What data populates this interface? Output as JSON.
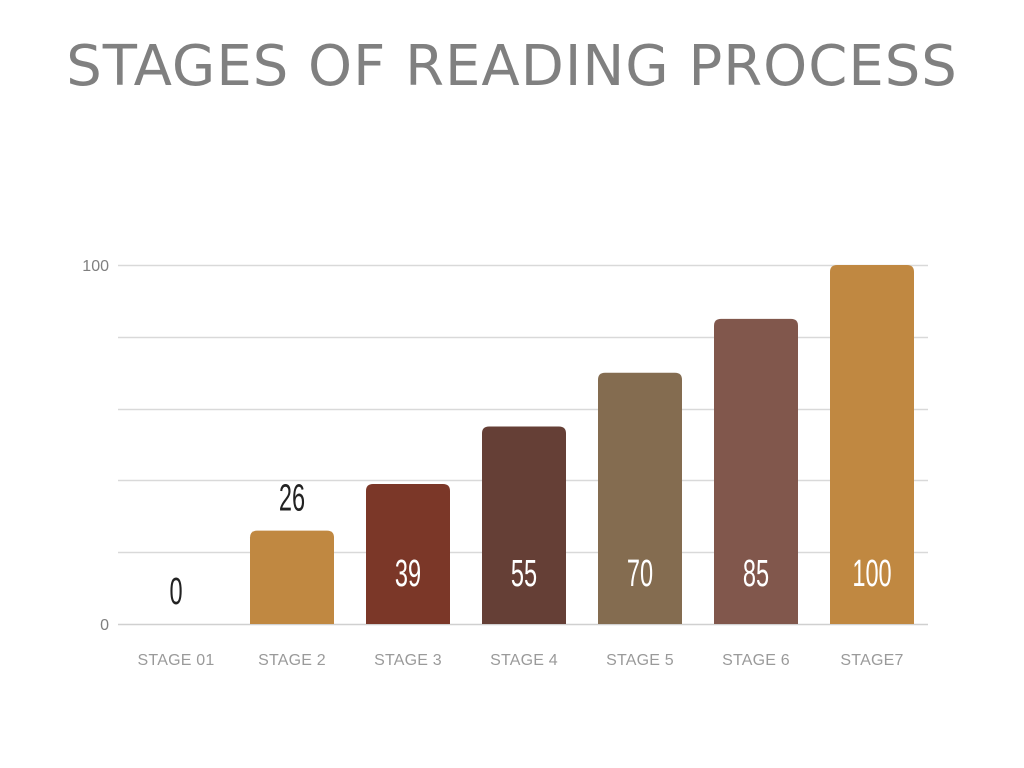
{
  "slide": {
    "title": "STAGES OF READING PROCESS"
  },
  "chart_data": {
    "type": "bar",
    "title": "",
    "xlabel": "",
    "ylabel": "",
    "categories": [
      "STAGE 01",
      "STAGE 2",
      "STAGE 3",
      "STAGE 4",
      "STAGE 5",
      "STAGE 6",
      "STAGE7"
    ],
    "values": [
      0,
      26,
      39,
      55,
      70,
      85,
      100
    ],
    "data_labels": [
      "0",
      "26",
      "39",
      "55",
      "70",
      "85",
      "100"
    ],
    "ylim": [
      0,
      100
    ],
    "y_tick_labels": [
      "0",
      "100"
    ],
    "gridlines": [
      0,
      20,
      40,
      60,
      80,
      100
    ],
    "grid": true,
    "legend": "none",
    "bar_colors": [
      "#C08841",
      "#C08841",
      "#7B3728",
      "#653F36",
      "#846C50",
      "#81574C",
      "#C08841"
    ],
    "data_label_colors": [
      "#222222",
      "#222222",
      "#ffffff",
      "#ffffff",
      "#ffffff",
      "#ffffff",
      "#ffffff"
    ],
    "colors": {
      "gridline": "#d9d9d9",
      "axis_line": "#d0d0d0"
    }
  }
}
